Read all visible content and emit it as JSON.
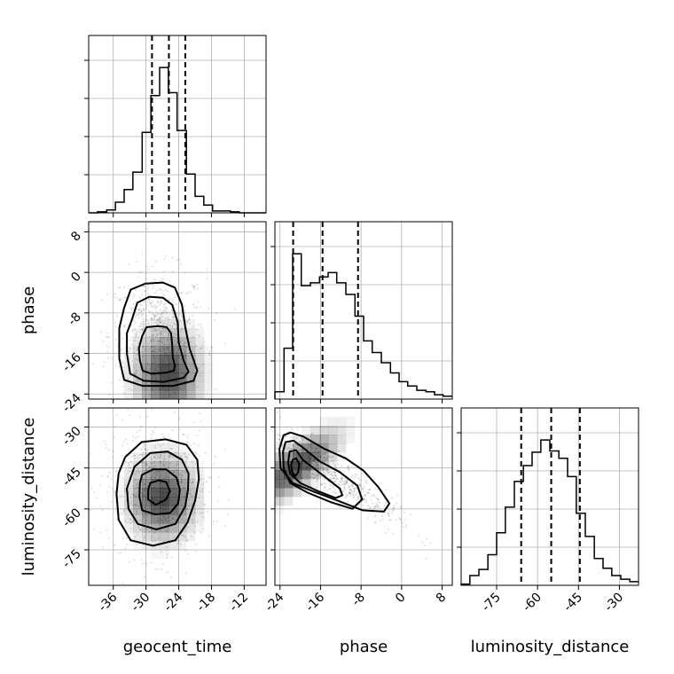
{
  "chart_data": {
    "type": "corner",
    "parameters": [
      "geocent_time",
      "phase",
      "luminosity_distance"
    ],
    "ranges": {
      "geocent_time": [
        -40.5,
        -8
      ],
      "phase": [
        -25,
        10
      ],
      "luminosity_distance": [
        -88,
        -23
      ]
    },
    "ticks": {
      "geocent_time": [
        "-36",
        "-30",
        "-24",
        "-18",
        "-12"
      ],
      "phase": [
        "-24",
        "-16",
        "-8",
        "0",
        "8"
      ],
      "luminosity_distance": [
        "-75",
        "-60",
        "-45",
        "-30"
      ]
    },
    "grid": true,
    "marginals": [
      {
        "parameter": "geocent_time",
        "quantiles": [
          -28.9,
          -25.8,
          -22.8
        ],
        "bin_edges": [
          -40.5,
          -38.9,
          -37.2,
          -35.6,
          -34.0,
          -32.4,
          -30.7,
          -29.1,
          -27.5,
          -25.9,
          -24.3,
          -22.6,
          -21.0,
          -19.4,
          -17.8,
          -16.1,
          -14.5,
          -12.9,
          -11.3,
          -9.6,
          -8.0
        ],
        "counts": [
          0,
          1,
          3,
          11,
          24,
          42,
          83,
          121,
          150,
          124,
          85,
          40,
          17,
          8,
          2,
          2,
          1,
          0,
          0,
          0
        ]
      },
      {
        "parameter": "phase",
        "quantiles": [
          -21.4,
          -15.6,
          -8.6
        ],
        "bin_edges": [
          -25.0,
          -23.2,
          -21.5,
          -19.8,
          -18.0,
          -16.2,
          -14.5,
          -12.8,
          -11.0,
          -9.2,
          -7.5,
          -5.8,
          -4.0,
          -2.2,
          -0.5,
          1.2,
          3.0,
          4.8,
          6.5,
          8.2,
          10.0
        ],
        "counts": [
          5,
          35,
          100,
          78,
          80,
          84,
          87,
          80,
          72,
          57,
          40,
          32,
          25,
          18,
          12,
          9,
          6,
          5,
          3,
          2
        ]
      },
      {
        "parameter": "luminosity_distance",
        "quantiles": [
          -66.0,
          -55.0,
          -44.5
        ],
        "bin_edges": [
          -88.0,
          -84.8,
          -81.5,
          -78.2,
          -75.0,
          -71.8,
          -68.5,
          -65.2,
          -62.0,
          -58.8,
          -55.5,
          -52.2,
          -49.0,
          -45.8,
          -42.5,
          -39.2,
          -36.0,
          -32.8,
          -29.5,
          -26.2,
          -23.0
        ],
        "counts": [
          1,
          8,
          13,
          25,
          43,
          64,
          85,
          98,
          109,
          119,
          110,
          104,
          89,
          59,
          40,
          22,
          14,
          8,
          5,
          3
        ]
      }
    ],
    "pairs": [
      {
        "x": "geocent_time",
        "y": "phase",
        "mode": [
          -26,
          -20
        ],
        "contours": [
          [
            [
              -30.7,
              -12.6
            ],
            [
              -29.9,
              -10.8
            ],
            [
              -27.8,
              -10.6
            ],
            [
              -26.2,
              -10.8
            ],
            [
              -25.4,
              -12.0
            ],
            [
              -25.2,
              -14.4
            ],
            [
              -25.1,
              -16.8
            ],
            [
              -24.7,
              -18.4
            ],
            [
              -24.9,
              -19.4
            ],
            [
              -26.4,
              -19.8
            ],
            [
              -29.0,
              -20.0
            ],
            [
              -30.6,
              -19.4
            ],
            [
              -31.1,
              -17.4
            ],
            [
              -31.3,
              -15.0
            ]
          ],
          [
            [
              -32.6,
              -9.4
            ],
            [
              -31.6,
              -6.0
            ],
            [
              -29.4,
              -4.8
            ],
            [
              -26.9,
              -5.0
            ],
            [
              -25.2,
              -6.4
            ],
            [
              -24.2,
              -9.8
            ],
            [
              -24.0,
              -13.8
            ],
            [
              -23.1,
              -17.4
            ],
            [
              -22.2,
              -19.6
            ],
            [
              -23.1,
              -20.8
            ],
            [
              -26.7,
              -21.6
            ],
            [
              -30.4,
              -21.4
            ],
            [
              -32.9,
              -20.0
            ],
            [
              -33.5,
              -16.0
            ],
            [
              -33.5,
              -12.0
            ]
          ],
          [
            [
              -34.0,
              -7.0
            ],
            [
              -32.8,
              -3.4
            ],
            [
              -30.1,
              -2.2
            ],
            [
              -26.9,
              -2.0
            ],
            [
              -24.7,
              -3.0
            ],
            [
              -23.4,
              -6.4
            ],
            [
              -22.8,
              -10.8
            ],
            [
              -22.0,
              -15.0
            ],
            [
              -20.6,
              -19.4
            ],
            [
              -21.3,
              -21.4
            ],
            [
              -25.0,
              -22.4
            ],
            [
              -30.6,
              -22.4
            ],
            [
              -34.0,
              -21.2
            ],
            [
              -34.9,
              -17.0
            ],
            [
              -34.9,
              -11.0
            ]
          ]
        ]
      },
      {
        "x": "geocent_time",
        "y": "luminosity_distance",
        "mode": [
          -27,
          -56
        ],
        "contours": [
          [
            [
              -29.2,
              -50.5
            ],
            [
              -27.6,
              -49.5
            ],
            [
              -26.3,
              -50.2
            ],
            [
              -25.6,
              -53.5
            ],
            [
              -26.3,
              -56.5
            ],
            [
              -28.2,
              -58.5
            ],
            [
              -29.6,
              -56.5
            ],
            [
              -29.6,
              -53.0
            ]
          ],
          [
            [
              -30.7,
              -47.5
            ],
            [
              -28.7,
              -45.5
            ],
            [
              -26.3,
              -45.5
            ],
            [
              -24.4,
              -48.5
            ],
            [
              -23.8,
              -53.0
            ],
            [
              -24.1,
              -58.0
            ],
            [
              -25.6,
              -61.5
            ],
            [
              -28.3,
              -62.0
            ],
            [
              -30.7,
              -60.5
            ],
            [
              -31.2,
              -55.5
            ],
            [
              -31.1,
              -50.5
            ]
          ],
          [
            [
              -32.1,
              -44.5
            ],
            [
              -29.2,
              -39.5
            ],
            [
              -26.0,
              -39.0
            ],
            [
              -23.4,
              -42.0
            ],
            [
              -22.2,
              -47.0
            ],
            [
              -22.3,
              -53.0
            ],
            [
              -22.8,
              -59.0
            ],
            [
              -24.6,
              -65.5
            ],
            [
              -28.1,
              -67.5
            ],
            [
              -31.5,
              -65.5
            ],
            [
              -33.2,
              -60.0
            ],
            [
              -33.5,
              -52.5
            ]
          ],
          [
            [
              -33.8,
              -41.0
            ],
            [
              -30.8,
              -35.5
            ],
            [
              -26.4,
              -34.5
            ],
            [
              -22.6,
              -36.5
            ],
            [
              -20.6,
              -42.0
            ],
            [
              -20.3,
              -49.0
            ],
            [
              -21.0,
              -57.0
            ],
            [
              -22.4,
              -65.0
            ],
            [
              -24.6,
              -71.5
            ],
            [
              -28.7,
              -73.5
            ],
            [
              -32.8,
              -71.5
            ],
            [
              -35.0,
              -64.0
            ],
            [
              -35.4,
              -54.5
            ],
            [
              -35.0,
              -47.0
            ]
          ]
        ]
      },
      {
        "x": "phase",
        "y": "luminosity_distance",
        "mode": [
          -21,
          -45
        ],
        "contours": [
          [
            [
              -21.5,
              -42.0
            ],
            [
              -20.8,
              -41.5
            ],
            [
              -20.2,
              -43.5
            ],
            [
              -20.4,
              -46.5
            ],
            [
              -21.0,
              -48.0
            ],
            [
              -21.6,
              -46.5
            ],
            [
              -21.8,
              -44.0
            ]
          ],
          [
            [
              -22.1,
              -39.0
            ],
            [
              -20.8,
              -38.5
            ],
            [
              -19.5,
              -42.0
            ],
            [
              -16.0,
              -47.0
            ],
            [
              -12.2,
              -52.5
            ],
            [
              -11.7,
              -55.0
            ],
            [
              -13.0,
              -56.0
            ],
            [
              -16.5,
              -53.5
            ],
            [
              -20.0,
              -50.5
            ],
            [
              -22.0,
              -47.0
            ],
            [
              -22.4,
              -43.0
            ]
          ],
          [
            [
              -22.9,
              -35.5
            ],
            [
              -21.3,
              -35.0
            ],
            [
              -19.5,
              -37.5
            ],
            [
              -16.2,
              -42.5
            ],
            [
              -12.2,
              -46.5
            ],
            [
              -8.7,
              -51.5
            ],
            [
              -7.8,
              -56.5
            ],
            [
              -9.7,
              -60.0
            ],
            [
              -14.0,
              -57.5
            ],
            [
              -18.6,
              -54.0
            ],
            [
              -22.0,
              -50.5
            ],
            [
              -23.3,
              -45.0
            ],
            [
              -23.4,
              -39.0
            ]
          ],
          [
            [
              -23.3,
              -33.0
            ],
            [
              -21.9,
              -32.0
            ],
            [
              -19.4,
              -33.5
            ],
            [
              -15.2,
              -38.0
            ],
            [
              -11.0,
              -41.5
            ],
            [
              -7.5,
              -46.0
            ],
            [
              -4.6,
              -52.0
            ],
            [
              -2.4,
              -58.0
            ],
            [
              -3.5,
              -61.0
            ],
            [
              -7.7,
              -60.5
            ],
            [
              -12.6,
              -57.0
            ],
            [
              -17.6,
              -53.5
            ],
            [
              -21.5,
              -50.5
            ],
            [
              -23.9,
              -45.0
            ],
            [
              -24.1,
              -38.0
            ]
          ]
        ]
      }
    ]
  }
}
